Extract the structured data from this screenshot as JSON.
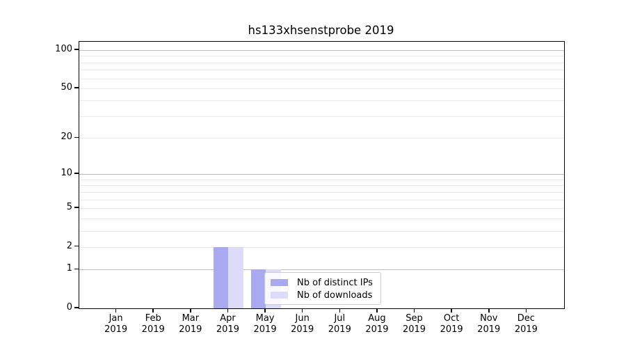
{
  "chart_data": {
    "type": "bar",
    "title": "hs133xhsenstprobe 2019",
    "categories": [
      "Jan",
      "Feb",
      "Mar",
      "Apr",
      "May",
      "Jun",
      "Jul",
      "Aug",
      "Sep",
      "Oct",
      "Nov",
      "Dec"
    ],
    "category_year": "2019",
    "series": [
      {
        "name": "Nb of distinct IPs",
        "color": "#a9a9f2",
        "values": [
          0,
          0,
          0,
          2,
          1,
          0,
          0,
          0,
          0,
          0,
          0,
          0
        ]
      },
      {
        "name": "Nb of downloads",
        "color": "#dcdcfa",
        "values": [
          0,
          0,
          0,
          2,
          1,
          0,
          0,
          0,
          0,
          0,
          0,
          0
        ]
      }
    ],
    "xlabel": "",
    "ylabel": "",
    "yscale": "log(1+y)",
    "yticks": [
      0,
      1,
      2,
      5,
      10,
      20,
      50,
      100
    ],
    "ylim": [
      0,
      116
    ],
    "grid": true,
    "major_gridlines": [
      1,
      10,
      100
    ],
    "minor_gridlines": [
      2,
      3,
      4,
      5,
      6,
      7,
      8,
      9,
      20,
      30,
      40,
      50,
      60,
      70,
      80,
      90
    ],
    "legend_position": "center-bottom"
  }
}
